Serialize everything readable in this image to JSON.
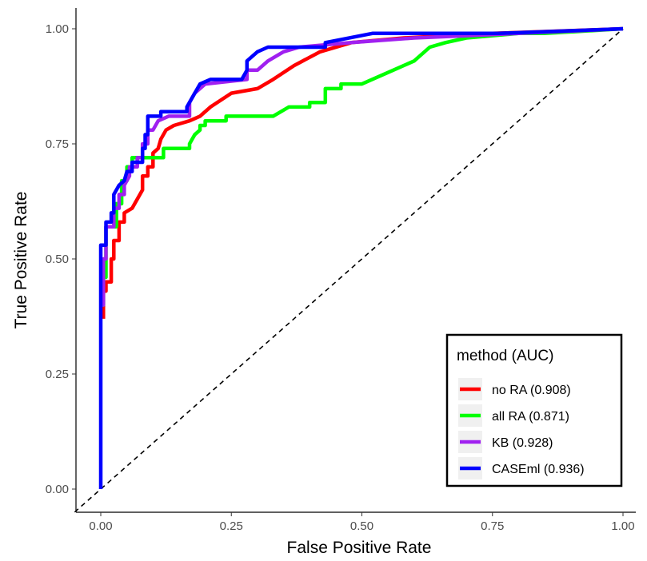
{
  "chart_data": {
    "type": "line",
    "xlabel": "False Positive Rate",
    "ylabel": "True Positive Rate",
    "xlim": [
      -0.05,
      1.0
    ],
    "ylim": [
      -0.05,
      1.04
    ],
    "x_ticks": [
      "0.00",
      "0.25",
      "0.50",
      "0.75",
      "1.00"
    ],
    "x_tick_values": [
      0,
      0.25,
      0.5,
      0.75,
      1.0
    ],
    "y_ticks": [
      "0.00",
      "0.25",
      "0.50",
      "0.75",
      "1.00"
    ],
    "y_tick_values": [
      0,
      0.25,
      0.5,
      0.75,
      1.0
    ],
    "grid": false,
    "legend": {
      "title": "method (AUC)",
      "placement": "bottom-right"
    },
    "reference_line": {
      "style": "dashed",
      "from": [
        0,
        0
      ],
      "to": [
        1,
        1
      ],
      "color": "#000000"
    },
    "series": [
      {
        "name": "no RA (0.908)",
        "color": "#ff0000",
        "points": [
          [
            0.005,
            0.37
          ],
          [
            0.005,
            0.43
          ],
          [
            0.01,
            0.43
          ],
          [
            0.01,
            0.45
          ],
          [
            0.02,
            0.45
          ],
          [
            0.02,
            0.5
          ],
          [
            0.025,
            0.5
          ],
          [
            0.025,
            0.54
          ],
          [
            0.035,
            0.54
          ],
          [
            0.035,
            0.58
          ],
          [
            0.045,
            0.58
          ],
          [
            0.045,
            0.6
          ],
          [
            0.06,
            0.61
          ],
          [
            0.07,
            0.63
          ],
          [
            0.08,
            0.65
          ],
          [
            0.08,
            0.68
          ],
          [
            0.09,
            0.68
          ],
          [
            0.09,
            0.7
          ],
          [
            0.1,
            0.7
          ],
          [
            0.1,
            0.73
          ],
          [
            0.11,
            0.74
          ],
          [
            0.115,
            0.76
          ],
          [
            0.125,
            0.78
          ],
          [
            0.14,
            0.79
          ],
          [
            0.17,
            0.8
          ],
          [
            0.19,
            0.81
          ],
          [
            0.21,
            0.83
          ],
          [
            0.25,
            0.86
          ],
          [
            0.3,
            0.87
          ],
          [
            0.33,
            0.89
          ],
          [
            0.37,
            0.92
          ],
          [
            0.42,
            0.95
          ],
          [
            0.48,
            0.97
          ],
          [
            0.58,
            0.98
          ],
          [
            0.75,
            0.99
          ],
          [
            1.0,
            1.0
          ]
        ]
      },
      {
        "name": "all RA (0.871)",
        "color": "#00ff00",
        "points": [
          [
            0.0,
            0.4
          ],
          [
            0.005,
            0.4
          ],
          [
            0.005,
            0.46
          ],
          [
            0.01,
            0.46
          ],
          [
            0.01,
            0.57
          ],
          [
            0.03,
            0.57
          ],
          [
            0.03,
            0.62
          ],
          [
            0.04,
            0.62
          ],
          [
            0.04,
            0.67
          ],
          [
            0.05,
            0.67
          ],
          [
            0.05,
            0.7
          ],
          [
            0.06,
            0.7
          ],
          [
            0.06,
            0.72
          ],
          [
            0.12,
            0.72
          ],
          [
            0.12,
            0.74
          ],
          [
            0.17,
            0.74
          ],
          [
            0.17,
            0.75
          ],
          [
            0.18,
            0.77
          ],
          [
            0.19,
            0.78
          ],
          [
            0.19,
            0.79
          ],
          [
            0.2,
            0.79
          ],
          [
            0.2,
            0.8
          ],
          [
            0.24,
            0.8
          ],
          [
            0.24,
            0.81
          ],
          [
            0.33,
            0.81
          ],
          [
            0.36,
            0.83
          ],
          [
            0.4,
            0.83
          ],
          [
            0.4,
            0.84
          ],
          [
            0.43,
            0.84
          ],
          [
            0.43,
            0.87
          ],
          [
            0.46,
            0.87
          ],
          [
            0.46,
            0.88
          ],
          [
            0.5,
            0.88
          ],
          [
            0.56,
            0.91
          ],
          [
            0.6,
            0.93
          ],
          [
            0.63,
            0.96
          ],
          [
            0.66,
            0.97
          ],
          [
            0.7,
            0.98
          ],
          [
            0.8,
            0.99
          ],
          [
            0.85,
            0.99
          ],
          [
            1.0,
            1.0
          ]
        ]
      },
      {
        "name": "KB (0.928)",
        "color": "#a020f0",
        "points": [
          [
            0.0,
            0.4
          ],
          [
            0.005,
            0.4
          ],
          [
            0.005,
            0.5
          ],
          [
            0.01,
            0.5
          ],
          [
            0.01,
            0.57
          ],
          [
            0.025,
            0.57
          ],
          [
            0.025,
            0.61
          ],
          [
            0.035,
            0.61
          ],
          [
            0.035,
            0.64
          ],
          [
            0.045,
            0.64
          ],
          [
            0.045,
            0.66
          ],
          [
            0.055,
            0.68
          ],
          [
            0.055,
            0.7
          ],
          [
            0.07,
            0.7
          ],
          [
            0.07,
            0.72
          ],
          [
            0.08,
            0.72
          ],
          [
            0.08,
            0.75
          ],
          [
            0.09,
            0.75
          ],
          [
            0.09,
            0.78
          ],
          [
            0.1,
            0.78
          ],
          [
            0.11,
            0.8
          ],
          [
            0.13,
            0.81
          ],
          [
            0.17,
            0.81
          ],
          [
            0.17,
            0.84
          ],
          [
            0.18,
            0.86
          ],
          [
            0.2,
            0.88
          ],
          [
            0.28,
            0.89
          ],
          [
            0.28,
            0.91
          ],
          [
            0.3,
            0.91
          ],
          [
            0.32,
            0.93
          ],
          [
            0.35,
            0.95
          ],
          [
            0.38,
            0.96
          ],
          [
            0.48,
            0.97
          ],
          [
            0.6,
            0.98
          ],
          [
            0.8,
            0.99
          ],
          [
            1.0,
            1.0
          ]
        ]
      },
      {
        "name": "CASEml (0.936)",
        "color": "#0000ff",
        "points": [
          [
            0.0,
            0.0
          ],
          [
            0.0,
            0.53
          ],
          [
            0.01,
            0.53
          ],
          [
            0.01,
            0.58
          ],
          [
            0.02,
            0.58
          ],
          [
            0.02,
            0.6
          ],
          [
            0.025,
            0.6
          ],
          [
            0.025,
            0.64
          ],
          [
            0.035,
            0.66
          ],
          [
            0.045,
            0.67
          ],
          [
            0.05,
            0.69
          ],
          [
            0.06,
            0.69
          ],
          [
            0.06,
            0.71
          ],
          [
            0.08,
            0.71
          ],
          [
            0.08,
            0.74
          ],
          [
            0.085,
            0.74
          ],
          [
            0.085,
            0.77
          ],
          [
            0.09,
            0.77
          ],
          [
            0.09,
            0.81
          ],
          [
            0.115,
            0.81
          ],
          [
            0.115,
            0.82
          ],
          [
            0.165,
            0.82
          ],
          [
            0.165,
            0.83
          ],
          [
            0.18,
            0.86
          ],
          [
            0.19,
            0.88
          ],
          [
            0.21,
            0.89
          ],
          [
            0.27,
            0.89
          ],
          [
            0.28,
            0.91
          ],
          [
            0.28,
            0.93
          ],
          [
            0.3,
            0.95
          ],
          [
            0.32,
            0.96
          ],
          [
            0.43,
            0.96
          ],
          [
            0.43,
            0.97
          ],
          [
            0.52,
            0.99
          ],
          [
            0.76,
            0.99
          ],
          [
            1.0,
            1.0
          ]
        ]
      }
    ]
  }
}
